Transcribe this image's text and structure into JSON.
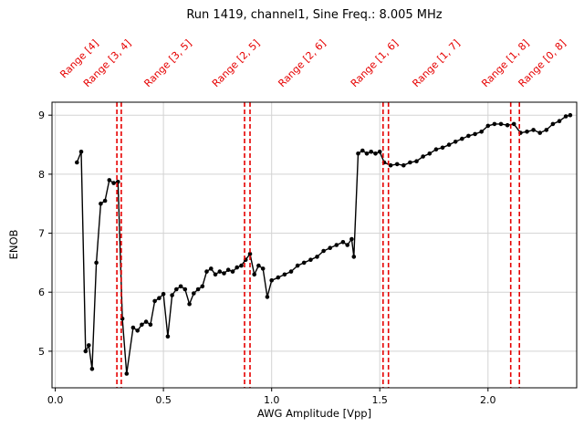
{
  "title": "Run 1419, channel1, Sine Freq.: 8.005 MHz",
  "chart_data": {
    "type": "line",
    "title": "Run 1419, channel1, Sine Freq.: 8.005 MHz",
    "xlabel": "AWG Amplitude [Vpp]",
    "ylabel": "ENOB",
    "xlim": [
      -0.015,
      2.41
    ],
    "ylim": [
      4.38,
      9.22
    ],
    "xticks": [
      0.0,
      0.5,
      1.0,
      1.5,
      2.0
    ],
    "yticks": [
      5,
      6,
      7,
      8,
      9
    ],
    "grid": true,
    "legend": "none",
    "line_color": "#000000",
    "marker": "circle",
    "vline_color": "#e60000",
    "vlines": [
      0.285,
      0.305,
      0.875,
      0.9,
      1.515,
      1.54,
      2.105,
      2.145
    ],
    "range_labels": [
      {
        "label": "Range [4]",
        "x": 0.16
      },
      {
        "label": "Range [3, 4]",
        "x": 0.31
      },
      {
        "label": "Range [3, 5]",
        "x": 0.59
      },
      {
        "label": "Range [2, 5]",
        "x": 0.905
      },
      {
        "label": "Range [2, 6]",
        "x": 1.21
      },
      {
        "label": "Range [1, 6]",
        "x": 1.545
      },
      {
        "label": "Range [1, 7]",
        "x": 1.83
      },
      {
        "label": "Range [1, 8]",
        "x": 2.15
      },
      {
        "label": "Range [0, 8]",
        "x": 2.32
      }
    ],
    "x": [
      0.1,
      0.12,
      0.14,
      0.155,
      0.17,
      0.19,
      0.21,
      0.23,
      0.25,
      0.27,
      0.29,
      0.31,
      0.33,
      0.36,
      0.38,
      0.4,
      0.42,
      0.44,
      0.46,
      0.48,
      0.5,
      0.52,
      0.54,
      0.56,
      0.58,
      0.6,
      0.62,
      0.64,
      0.66,
      0.68,
      0.7,
      0.72,
      0.74,
      0.76,
      0.78,
      0.8,
      0.82,
      0.84,
      0.86,
      0.88,
      0.9,
      0.92,
      0.94,
      0.96,
      0.98,
      1.0,
      1.03,
      1.06,
      1.09,
      1.12,
      1.15,
      1.18,
      1.21,
      1.24,
      1.27,
      1.3,
      1.33,
      1.35,
      1.37,
      1.38,
      1.4,
      1.42,
      1.44,
      1.46,
      1.48,
      1.5,
      1.52,
      1.55,
      1.58,
      1.61,
      1.64,
      1.67,
      1.7,
      1.73,
      1.76,
      1.79,
      1.82,
      1.85,
      1.88,
      1.91,
      1.94,
      1.97,
      2.0,
      2.03,
      2.06,
      2.09,
      2.12,
      2.15,
      2.18,
      2.21,
      2.24,
      2.27,
      2.3,
      2.33,
      2.36,
      2.38
    ],
    "y": [
      8.2,
      8.38,
      5.0,
      5.1,
      4.7,
      6.5,
      7.5,
      7.55,
      7.9,
      7.85,
      7.87,
      5.55,
      4.62,
      5.4,
      5.35,
      5.45,
      5.5,
      5.45,
      5.85,
      5.9,
      5.97,
      5.25,
      5.95,
      6.05,
      6.1,
      6.05,
      5.8,
      5.98,
      6.05,
      6.1,
      6.35,
      6.4,
      6.3,
      6.35,
      6.32,
      6.38,
      6.35,
      6.42,
      6.45,
      6.55,
      6.65,
      6.3,
      6.45,
      6.4,
      5.92,
      6.2,
      6.25,
      6.3,
      6.35,
      6.45,
      6.5,
      6.55,
      6.6,
      6.7,
      6.75,
      6.8,
      6.85,
      6.8,
      6.9,
      6.6,
      8.35,
      8.4,
      8.35,
      8.38,
      8.35,
      8.38,
      8.2,
      8.15,
      8.17,
      8.15,
      8.2,
      8.22,
      8.3,
      8.35,
      8.42,
      8.45,
      8.5,
      8.55,
      8.6,
      8.65,
      8.68,
      8.72,
      8.82,
      8.85,
      8.85,
      8.83,
      8.85,
      8.7,
      8.72,
      8.75,
      8.7,
      8.75,
      8.85,
      8.9,
      8.98,
      9.0
    ]
  }
}
